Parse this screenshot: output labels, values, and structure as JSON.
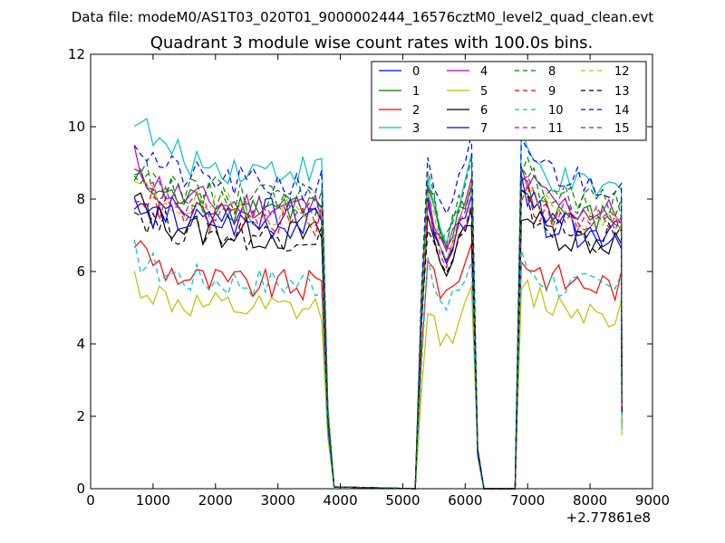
{
  "chart_data": {
    "type": "line",
    "suptitle": "Data file: modeM0/AS1T03_020T01_9000002444_16576cztM0_level2_quad_clean.evt",
    "title": "Quadrant 3 module wise count rates with 100.0s bins.",
    "xlabel": "",
    "ylabel": "",
    "xlim": [
      0,
      9000
    ],
    "ylim": [
      0,
      12
    ],
    "x_offset_label": "+2.77861e8",
    "xticks": [
      0,
      1000,
      2000,
      3000,
      4000,
      5000,
      6000,
      7000,
      8000,
      9000
    ],
    "xtick_labels": [
      "0",
      "1000",
      "2000",
      "3000",
      "4000",
      "5000",
      "6000",
      "7000",
      "8000",
      "9000"
    ],
    "yticks": [
      0,
      2,
      4,
      6,
      8,
      10,
      12
    ],
    "ytick_labels": [
      "0",
      "2",
      "4",
      "6",
      "8",
      "10",
      "12"
    ],
    "grid": false,
    "legend_position": "top-right",
    "legend_columns": 4,
    "segments_note": "",
    "series": [
      {
        "name": "0",
        "color": "#0000ff",
        "dash": "solid",
        "level": 7.6,
        "early": 8.0,
        "s2": 7.9,
        "p2": 7.8,
        "s3": 7.2
      },
      {
        "name": "1",
        "color": "#008000",
        "dash": "solid",
        "level": 7.8,
        "early": 8.6,
        "s2": 8.2,
        "p2": 8.0,
        "s3": 7.4
      },
      {
        "name": "2",
        "color": "#ff0000",
        "dash": "solid",
        "level": 5.6,
        "early": 6.9,
        "s2": 6.5,
        "p2": 6.4,
        "s3": 5.6
      },
      {
        "name": "3",
        "color": "#00bfbf",
        "dash": "solid",
        "level": 8.8,
        "early": 10.4,
        "s2": 8.6,
        "p2": 8.7,
        "s3": 8.2
      },
      {
        "name": "4",
        "color": "#bf00bf",
        "dash": "solid",
        "level": 7.8,
        "early": 9.1,
        "s2": 8.1,
        "p2": 8.0,
        "s3": 7.6
      },
      {
        "name": "5",
        "color": "#bfbf00",
        "dash": "solid",
        "level": 4.9,
        "early": 5.8,
        "s2": 5.0,
        "p2": 5.1,
        "s3": 4.9
      },
      {
        "name": "6",
        "color": "#000000",
        "dash": "solid",
        "level": 7.0,
        "early": 8.0,
        "s2": 7.5,
        "p2": 7.2,
        "s3": 6.8
      },
      {
        "name": "7",
        "color": "#0000ff",
        "dash": "solid",
        "level": 7.3,
        "early": 7.8,
        "s2": 7.8,
        "p2": 7.6,
        "s3": 7.0
      },
      {
        "name": "8",
        "color": "#008000",
        "dash": "dashed",
        "level": 8.0,
        "early": 8.9,
        "s2": 8.5,
        "p2": 8.2,
        "s3": 7.8
      },
      {
        "name": "9",
        "color": "#ff0000",
        "dash": "dashed",
        "level": 7.4,
        "early": 8.3,
        "s2": 7.8,
        "p2": 7.6,
        "s3": 7.2
      },
      {
        "name": "10",
        "color": "#00bfbf",
        "dash": "dashed",
        "level": 5.7,
        "early": 6.5,
        "s2": 6.1,
        "p2": 6.0,
        "s3": 5.5
      },
      {
        "name": "11",
        "color": "#bf00bf",
        "dash": "dashed",
        "level": 7.6,
        "early": 8.6,
        "s2": 8.0,
        "p2": 7.9,
        "s3": 7.4
      },
      {
        "name": "12",
        "color": "#bfbf00",
        "dash": "dashed",
        "level": 7.7,
        "early": 8.4,
        "s2": 8.1,
        "p2": 8.0,
        "s3": 7.3
      },
      {
        "name": "13",
        "color": "#000000",
        "dash": "dashed",
        "level": 7.0,
        "early": 7.7,
        "s2": 7.4,
        "p2": 7.2,
        "s3": 6.9
      },
      {
        "name": "14",
        "color": "#0000ff",
        "dash": "dashed",
        "level": 8.4,
        "early": 9.7,
        "s2": 9.2,
        "p2": 9.1,
        "s3": 8.4
      },
      {
        "name": "15",
        "color": "#008000",
        "dash": "dashed",
        "level": 8.1,
        "early": 9.0,
        "s2": 8.6,
        "p2": 8.4,
        "s3": 7.8
      }
    ]
  }
}
